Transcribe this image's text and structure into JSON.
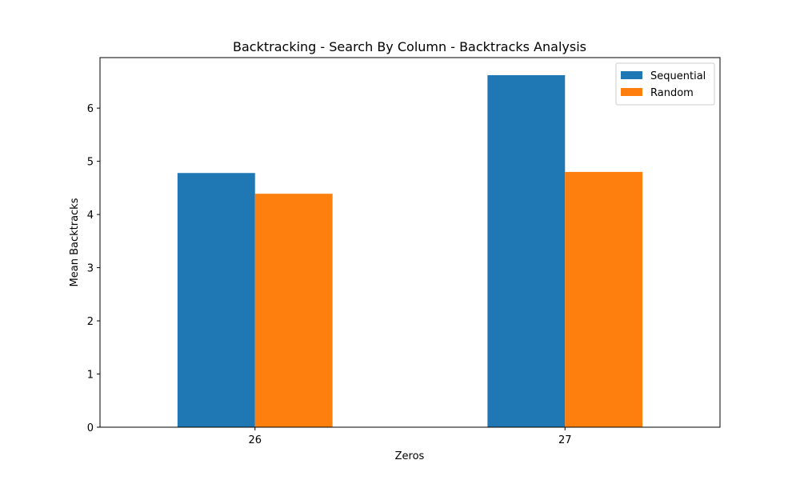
{
  "chart_data": {
    "type": "bar",
    "title": "Backtracking - Search By Column - Backtracks Analysis",
    "xlabel": "Zeros",
    "ylabel": "Mean Backtracks",
    "categories": [
      "26",
      "27"
    ],
    "series": [
      {
        "name": "Sequential",
        "color": "#1f77b4",
        "values": [
          4.78,
          6.62
        ]
      },
      {
        "name": "Random",
        "color": "#ff7f0e",
        "values": [
          4.39,
          4.8
        ]
      }
    ],
    "ylim": [
      0,
      6.95
    ],
    "yticks": [
      0,
      1,
      2,
      3,
      4,
      5,
      6
    ],
    "grid": false,
    "legend_position": "top-right"
  }
}
